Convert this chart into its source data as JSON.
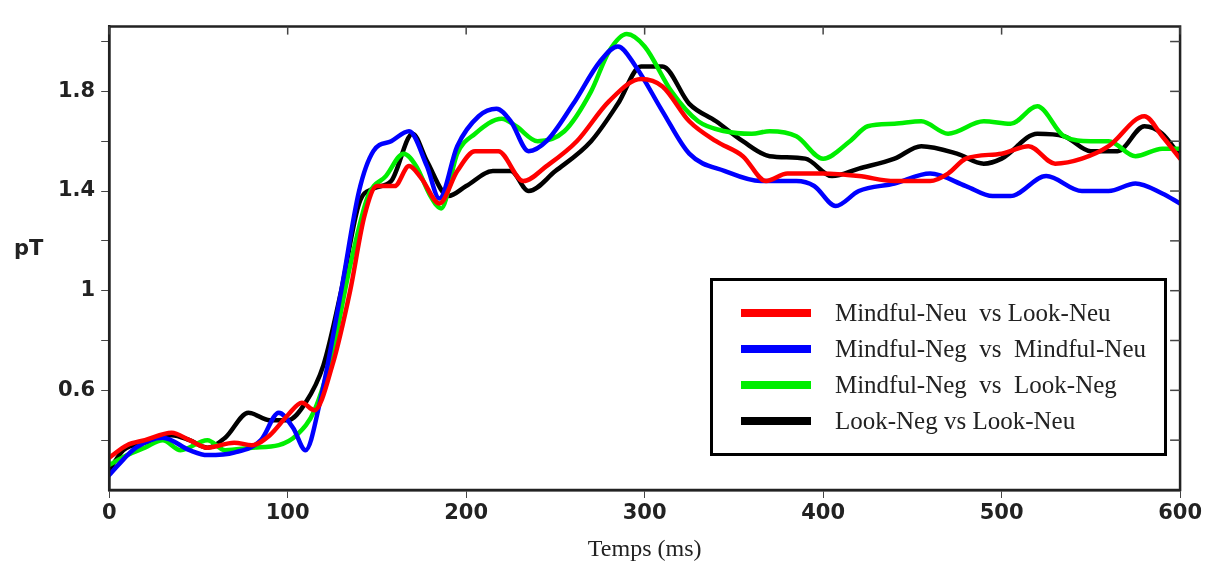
{
  "chart_data": {
    "type": "line",
    "xlabel": "Temps (ms)",
    "ylabel": "pT",
    "xlim": [
      0,
      600
    ],
    "xticks": [
      0,
      100,
      200,
      300,
      400,
      500,
      600
    ],
    "ylim": [
      0.2,
      2.06
    ],
    "yticks": [
      {
        "value": 0.4,
        "label": null
      },
      0.6,
      {
        "value": 0.8,
        "label": null
      },
      1,
      {
        "value": 1.2,
        "label": null
      },
      1.4,
      {
        "value": 1.6,
        "label": null
      },
      1.8,
      {
        "value": 2.0,
        "label": null
      }
    ],
    "grid": false,
    "legend": "bottom right",
    "marker": "none",
    "line_style": "solid",
    "series": [
      {
        "name": "Mindful-Neu  vs Look-Neu",
        "color": "#ff0000",
        "x": [
          0,
          10,
          20,
          35,
          45,
          55,
          70,
          80,
          90,
          100,
          108,
          115,
          125,
          135,
          143,
          150,
          160,
          168,
          175,
          185,
          195,
          205,
          218,
          232,
          245,
          262,
          280,
          298,
          310,
          325,
          340,
          355,
          368,
          380,
          400,
          420,
          440,
          460,
          470,
          480,
          500,
          515,
          530,
          545,
          560,
          580,
          590,
          600
        ],
        "values": [
          0.33,
          0.38,
          0.4,
          0.43,
          0.4,
          0.37,
          0.39,
          0.38,
          0.42,
          0.5,
          0.55,
          0.52,
          0.7,
          1.0,
          1.3,
          1.42,
          1.42,
          1.5,
          1.45,
          1.35,
          1.48,
          1.56,
          1.56,
          1.44,
          1.5,
          1.6,
          1.76,
          1.85,
          1.82,
          1.68,
          1.6,
          1.54,
          1.44,
          1.47,
          1.47,
          1.46,
          1.44,
          1.44,
          1.47,
          1.53,
          1.55,
          1.58,
          1.51,
          1.53,
          1.58,
          1.7,
          1.62,
          1.53
        ]
      },
      {
        "name": "Mindful-Neg  vs  Mindful-Neu",
        "color": "#0000ff",
        "x": [
          0,
          5,
          15,
          30,
          45,
          55,
          70,
          85,
          95,
          103,
          110,
          118,
          130,
          140,
          148,
          158,
          168,
          178,
          185,
          195,
          207,
          217,
          225,
          235,
          245,
          260,
          275,
          285,
          295,
          310,
          325,
          345,
          365,
          385,
          395,
          407,
          420,
          440,
          460,
          480,
          495,
          505,
          525,
          545,
          560,
          575,
          590,
          600
        ],
        "values": [
          0.26,
          0.3,
          0.37,
          0.41,
          0.36,
          0.34,
          0.35,
          0.4,
          0.51,
          0.45,
          0.36,
          0.55,
          1.0,
          1.4,
          1.56,
          1.6,
          1.64,
          1.5,
          1.37,
          1.58,
          1.7,
          1.73,
          1.68,
          1.56,
          1.6,
          1.75,
          1.92,
          1.98,
          1.9,
          1.72,
          1.55,
          1.48,
          1.44,
          1.44,
          1.42,
          1.34,
          1.4,
          1.43,
          1.47,
          1.42,
          1.38,
          1.38,
          1.46,
          1.4,
          1.4,
          1.43,
          1.39,
          1.35
        ]
      },
      {
        "name": "Mindful-Neg  vs  Look-Neg",
        "color": "#00ee00",
        "x": [
          0,
          10,
          20,
          30,
          40,
          55,
          65,
          80,
          95,
          105,
          115,
          125,
          135,
          145,
          155,
          165,
          172,
          180,
          186,
          195,
          205,
          220,
          228,
          240,
          255,
          270,
          280,
          290,
          300,
          315,
          330,
          345,
          360,
          370,
          385,
          400,
          415,
          425,
          440,
          455,
          470,
          490,
          505,
          520,
          535,
          550,
          560,
          575,
          590,
          600
        ],
        "values": [
          0.3,
          0.34,
          0.37,
          0.4,
          0.36,
          0.4,
          0.36,
          0.37,
          0.38,
          0.42,
          0.52,
          0.75,
          1.1,
          1.38,
          1.46,
          1.55,
          1.5,
          1.38,
          1.33,
          1.55,
          1.63,
          1.69,
          1.66,
          1.6,
          1.64,
          1.8,
          1.96,
          2.03,
          1.98,
          1.8,
          1.68,
          1.64,
          1.63,
          1.64,
          1.62,
          1.53,
          1.6,
          1.66,
          1.67,
          1.68,
          1.63,
          1.68,
          1.67,
          1.74,
          1.62,
          1.6,
          1.6,
          1.54,
          1.57,
          1.57
        ]
      },
      {
        "name": "Look-Neg vs Look-Neu",
        "color": "#000000",
        "x": [
          0,
          8,
          20,
          35,
          45,
          55,
          65,
          78,
          90,
          100,
          110,
          120,
          130,
          140,
          148,
          158,
          170,
          178,
          190,
          200,
          215,
          225,
          235,
          250,
          270,
          285,
          298,
          310,
          325,
          340,
          355,
          370,
          390,
          405,
          420,
          440,
          455,
          475,
          490,
          500,
          520,
          535,
          550,
          565,
          580,
          590,
          600
        ],
        "values": [
          0.28,
          0.36,
          0.39,
          0.42,
          0.4,
          0.37,
          0.41,
          0.51,
          0.48,
          0.48,
          0.55,
          0.7,
          1.0,
          1.35,
          1.41,
          1.44,
          1.63,
          1.52,
          1.38,
          1.42,
          1.48,
          1.48,
          1.4,
          1.48,
          1.6,
          1.75,
          1.9,
          1.9,
          1.75,
          1.68,
          1.6,
          1.54,
          1.53,
          1.46,
          1.49,
          1.53,
          1.58,
          1.55,
          1.51,
          1.53,
          1.63,
          1.62,
          1.56,
          1.56,
          1.66,
          1.63,
          1.54
        ]
      }
    ]
  }
}
